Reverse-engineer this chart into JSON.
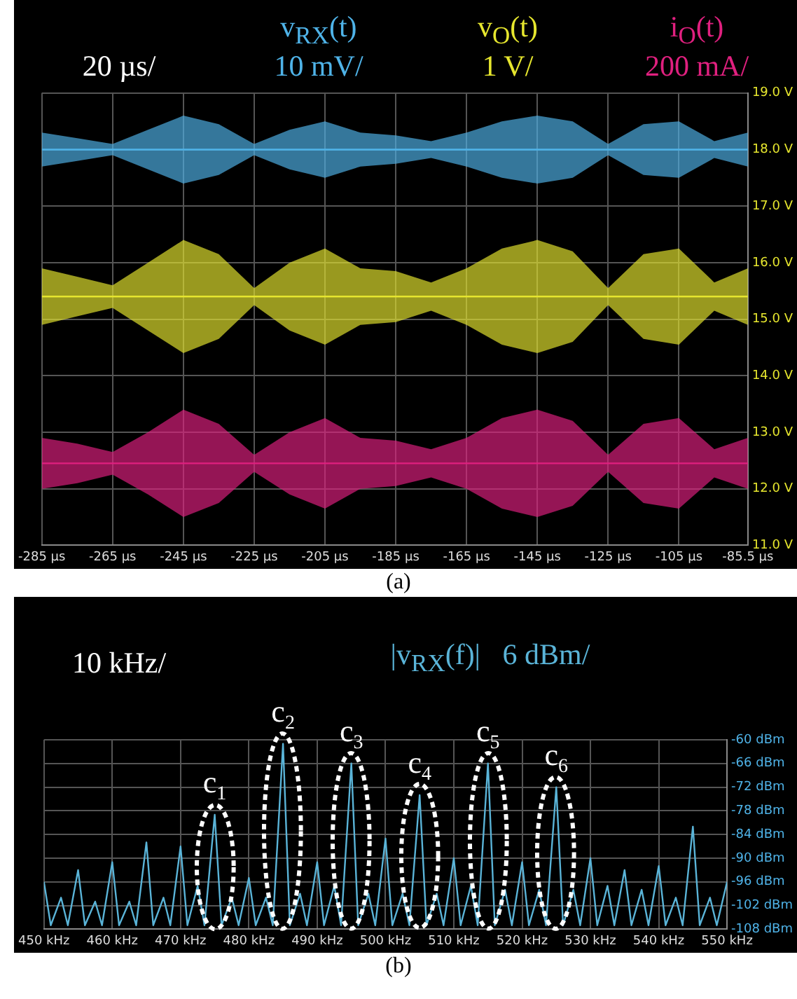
{
  "chart_data": [
    {
      "type": "line",
      "grid": true,
      "marker": "none",
      "line_style": "solid",
      "x": [
        -285,
        -275,
        -265,
        -255,
        -245,
        -235,
        -225,
        -215,
        -205,
        -195,
        -185,
        -175,
        -165,
        -155,
        -145,
        -135,
        -125,
        -115,
        -105,
        -95,
        -85.5
      ],
      "xlim": [
        -285,
        -85.5
      ],
      "xticks": [
        {
          "value": -285,
          "label": "-285 µs"
        },
        {
          "value": -265,
          "label": "-265 µs"
        },
        {
          "value": -245,
          "label": "-245 µs"
        },
        {
          "value": -225,
          "label": "-225 µs"
        },
        {
          "value": -205,
          "label": "-205 µs"
        },
        {
          "value": -185,
          "label": "-185 µs"
        },
        {
          "value": -165,
          "label": "-165 µs"
        },
        {
          "value": -145,
          "label": "-145 µs"
        },
        {
          "value": -125,
          "label": "-125 µs"
        },
        {
          "value": -105,
          "label": "-105 µs"
        },
        {
          "value": -85.5,
          "label": "-85.5 µs"
        }
      ],
      "ylim": [
        11,
        19
      ],
      "yticks": [
        {
          "value": 11,
          "label": "11.0 V"
        },
        {
          "value": 12,
          "label": "12.0 V"
        },
        {
          "value": 13,
          "label": "13.0 V"
        },
        {
          "value": 14,
          "label": "14.0 V"
        },
        {
          "value": 15,
          "label": "15.0 V"
        },
        {
          "value": 16,
          "label": "16.0 V"
        },
        {
          "value": 17,
          "label": "17.0 V"
        },
        {
          "value": 18,
          "label": "18.0 V"
        },
        {
          "value": 19,
          "label": "19.0 V"
        }
      ],
      "series": [
        {
          "name": "v$_{RX}$(t)",
          "color": "#4fb3e8",
          "values": [
            18,
            18,
            18,
            18,
            18,
            18,
            18,
            18,
            18,
            18,
            18,
            18,
            18,
            18,
            18,
            18,
            18,
            18,
            18,
            18,
            18
          ],
          "lower": [
            17.7,
            17.8,
            17.9,
            17.65,
            17.4,
            17.55,
            17.9,
            17.65,
            17.5,
            17.7,
            17.75,
            17.85,
            17.7,
            17.5,
            17.4,
            17.5,
            17.9,
            17.55,
            17.5,
            17.85,
            17.7
          ],
          "upper": [
            18.3,
            18.2,
            18.1,
            18.35,
            18.6,
            18.45,
            18.1,
            18.35,
            18.5,
            18.3,
            18.25,
            18.15,
            18.3,
            18.5,
            18.6,
            18.5,
            18.1,
            18.45,
            18.5,
            18.15,
            18.3
          ]
        },
        {
          "name": "v$_{O}$(t)",
          "color": "#e6e62e",
          "values": [
            15.4,
            15.4,
            15.4,
            15.4,
            15.4,
            15.4,
            15.4,
            15.4,
            15.4,
            15.4,
            15.4,
            15.4,
            15.4,
            15.4,
            15.4,
            15.4,
            15.4,
            15.4,
            15.4,
            15.4,
            15.4
          ],
          "lower": [
            14.9,
            15.05,
            15.2,
            14.8,
            14.4,
            14.65,
            15.25,
            14.8,
            14.55,
            14.9,
            14.95,
            15.15,
            14.9,
            14.55,
            14.4,
            14.6,
            15.25,
            14.65,
            14.55,
            15.15,
            14.9
          ],
          "upper": [
            15.9,
            15.75,
            15.6,
            16.0,
            16.4,
            16.15,
            15.55,
            16.0,
            16.25,
            15.9,
            15.85,
            15.65,
            15.9,
            16.25,
            16.4,
            16.2,
            15.55,
            16.15,
            16.25,
            15.65,
            15.9
          ]
        },
        {
          "name": "i$_{O}$(t)",
          "color": "#e0207f",
          "values": [
            12.45,
            12.45,
            12.45,
            12.45,
            12.45,
            12.45,
            12.45,
            12.45,
            12.45,
            12.45,
            12.45,
            12.45,
            12.45,
            12.45,
            12.45,
            12.45,
            12.45,
            12.45,
            12.45,
            12.45,
            12.45
          ],
          "lower": [
            12.0,
            12.1,
            12.25,
            11.9,
            11.5,
            11.75,
            12.3,
            11.9,
            11.65,
            12.0,
            12.05,
            12.2,
            12.0,
            11.65,
            11.5,
            11.7,
            12.3,
            11.75,
            11.65,
            12.2,
            12.0
          ],
          "upper": [
            12.9,
            12.8,
            12.65,
            13.0,
            13.4,
            13.15,
            12.6,
            13.0,
            13.25,
            12.9,
            12.85,
            12.7,
            12.9,
            13.25,
            13.4,
            13.2,
            12.6,
            13.15,
            13.25,
            12.7,
            12.9
          ]
        }
      ],
      "annotations": [
        "20 µs/",
        "10 mV/",
        "1 V/",
        "200 mA/",
        "(a)"
      ]
    },
    {
      "type": "line",
      "grid": true,
      "marker": "none",
      "line_style": "solid",
      "x": [
        450,
        451,
        452.5,
        453.5,
        455,
        456,
        457.5,
        458.5,
        460,
        461,
        462.5,
        463.5,
        465,
        466,
        467.5,
        468.5,
        470,
        471,
        472.5,
        473.5,
        475,
        476,
        477.5,
        478.5,
        480,
        481,
        482.5,
        483.5,
        485,
        486,
        487.5,
        488.5,
        490,
        491,
        492.5,
        493.5,
        495,
        496,
        497.5,
        498.5,
        500,
        501,
        502.5,
        503.5,
        505,
        506,
        507.5,
        508.5,
        510,
        511,
        512.5,
        513.5,
        515,
        516,
        517.5,
        518.5,
        520,
        521,
        522.5,
        523.5,
        525,
        526,
        527.5,
        528.5,
        530,
        531,
        532.5,
        533.5,
        535,
        536,
        537.5,
        538.5,
        540,
        541,
        542.5,
        543.5,
        545,
        546,
        547.5,
        548.5,
        550
      ],
      "xlim": [
        450,
        550
      ],
      "xticks": [
        {
          "value": 450,
          "label": "450 kHz"
        },
        {
          "value": 460,
          "label": "460 kHz"
        },
        {
          "value": 470,
          "label": "470 kHz"
        },
        {
          "value": 480,
          "label": "480 kHz"
        },
        {
          "value": 490,
          "label": "490 kHz"
        },
        {
          "value": 500,
          "label": "500 kHz"
        },
        {
          "value": 510,
          "label": "510 kHz"
        },
        {
          "value": 520,
          "label": "520 kHz"
        },
        {
          "value": 530,
          "label": "530 kHz"
        },
        {
          "value": 540,
          "label": "540 kHz"
        },
        {
          "value": 550,
          "label": "550 kHz"
        }
      ],
      "ylim": [
        -108,
        -60
      ],
      "yticks": [
        {
          "value": -108,
          "label": "-108 dBm"
        },
        {
          "value": -102,
          "label": "-102 dBm"
        },
        {
          "value": -96,
          "label": "-96 dBm"
        },
        {
          "value": -90,
          "label": "-90 dBm"
        },
        {
          "value": -84,
          "label": "-84 dBm"
        },
        {
          "value": -78,
          "label": "-78 dBm"
        },
        {
          "value": -72,
          "label": "-72 dBm"
        },
        {
          "value": -66,
          "label": "-66 dBm"
        },
        {
          "value": -60,
          "label": "-60 dBm"
        }
      ],
      "series": [
        {
          "name": "|v$_{RX}$(f)|",
          "color": "#5ab4d8",
          "values": [
            -96,
            -107,
            -100,
            -107,
            -93,
            -107,
            -101,
            -107,
            -91,
            -107,
            -101,
            -107,
            -86,
            -107,
            -100,
            -107,
            -87,
            -107,
            -97,
            -107,
            -79,
            -107,
            -100,
            -107,
            -95,
            -107,
            -100,
            -107,
            -61,
            -107,
            -99,
            -107,
            -91,
            -107,
            -97,
            -107,
            -66,
            -107,
            -99,
            -107,
            -85,
            -107,
            -99,
            -107,
            -74,
            -107,
            -99,
            -107,
            -90,
            -107,
            -97,
            -107,
            -66,
            -107,
            -98,
            -107,
            -91,
            -107,
            -98,
            -107,
            -72,
            -107,
            -98,
            -107,
            -90,
            -107,
            -97,
            -107,
            -93,
            -107,
            -98,
            -107,
            -92,
            -107,
            -100,
            -107,
            -82,
            -107,
            -100,
            -107,
            -96
          ]
        }
      ],
      "annotations": [
        "10 kHz/",
        "6 dBm/",
        {
          "text": "c$_{1}$",
          "x": 475,
          "y": -79
        },
        {
          "text": "c$_{2}$",
          "x": 485,
          "y": -61
        },
        {
          "text": "c$_{3}$",
          "x": 495,
          "y": -66
        },
        {
          "text": "c$_{4}$",
          "x": 505,
          "y": -74
        },
        {
          "text": "c$_{5}$",
          "x": 515,
          "y": -66
        },
        {
          "text": "c$_{6}$",
          "x": 525,
          "y": -72
        },
        "(b)"
      ]
    }
  ]
}
